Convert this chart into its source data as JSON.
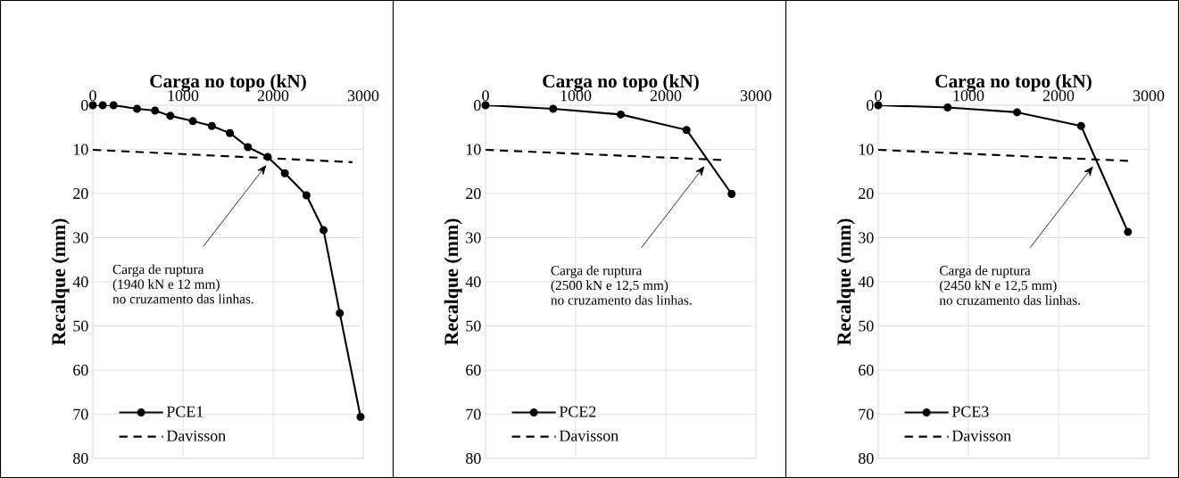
{
  "chart_data": [
    {
      "type": "line",
      "title": "Carga no topo (kN)",
      "ylabel": "Recalque (mm)",
      "xlim": [
        0,
        3000
      ],
      "ylim": [
        80,
        0
      ],
      "xticks": [
        0,
        1000,
        2000,
        3000
      ],
      "yticks": [
        0,
        10,
        20,
        30,
        40,
        50,
        60,
        70,
        80
      ],
      "grid": true,
      "legend": "bottom left",
      "series": [
        {
          "name": "PCE1",
          "color": "#000000",
          "marker": "circle",
          "line_style": "solid",
          "x": [
            0,
            110,
            230,
            490,
            690,
            860,
            1110,
            1320,
            1520,
            1720,
            1940,
            2130,
            2370,
            2560,
            2740,
            2970
          ],
          "values": [
            0,
            0,
            0,
            0.8,
            1.2,
            2.4,
            3.6,
            4.7,
            6.3,
            9.5,
            11.7,
            15.4,
            20.4,
            28.3,
            47.1,
            70.6
          ]
        },
        {
          "name": "Davisson",
          "color": "#000000",
          "marker": "none",
          "line_style": "dashed",
          "x": [
            0,
            2880
          ],
          "values": [
            10.1,
            12.9
          ]
        }
      ],
      "annotations": [
        "Carga de ruptura",
        "(1940 kN e 12 mm)",
        "no cruzamento das linhas."
      ]
    },
    {
      "type": "line",
      "title": "Carga no topo (kN)",
      "ylabel": "Recalque (mm)",
      "xlim": [
        0,
        3000
      ],
      "ylim": [
        80,
        0
      ],
      "xticks": [
        0,
        1000,
        2000,
        3000
      ],
      "yticks": [
        0,
        10,
        20,
        30,
        40,
        50,
        60,
        70,
        80
      ],
      "grid": true,
      "legend": "bottom left",
      "series": [
        {
          "name": "PCE2",
          "color": "#000000",
          "marker": "circle",
          "line_style": "solid",
          "x": [
            0,
            750,
            1500,
            2230,
            2730
          ],
          "values": [
            0,
            0.8,
            2.1,
            5.6,
            20.1
          ]
        },
        {
          "name": "Davisson",
          "color": "#000000",
          "marker": "none",
          "line_style": "dashed",
          "x": [
            0,
            2620
          ],
          "values": [
            10.1,
            12.4
          ]
        }
      ],
      "annotations": [
        "Carga de ruptura",
        "(2500 kN e 12,5 mm)",
        "no cruzamento das linhas."
      ]
    },
    {
      "type": "line",
      "title": "Carga no topo (kN)",
      "ylabel": "Recalque (mm)",
      "xlim": [
        0,
        3000
      ],
      "ylim": [
        80,
        0
      ],
      "xticks": [
        0,
        1000,
        2000,
        3000
      ],
      "yticks": [
        0,
        10,
        20,
        30,
        40,
        50,
        60,
        70,
        80
      ],
      "grid": true,
      "legend": "bottom left",
      "series": [
        {
          "name": "PCE3",
          "color": "#000000",
          "marker": "circle",
          "line_style": "solid",
          "x": [
            0,
            770,
            1540,
            2250,
            2770
          ],
          "values": [
            0,
            0.5,
            1.6,
            4.7,
            28.7
          ]
        },
        {
          "name": "Davisson",
          "color": "#000000",
          "marker": "none",
          "line_style": "dashed",
          "x": [
            0,
            2770
          ],
          "values": [
            10.1,
            12.6
          ]
        }
      ],
      "annotations": [
        "Carga de ruptura",
        "(2450 kN e 12,5 mm)",
        "no cruzamento das linhas."
      ]
    }
  ]
}
